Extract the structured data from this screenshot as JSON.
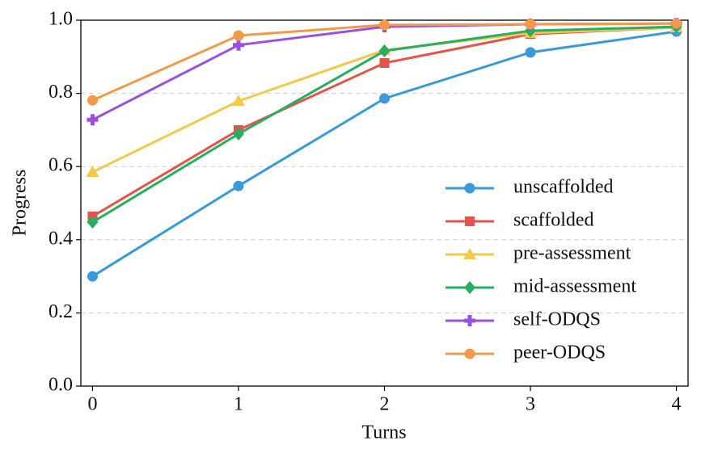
{
  "chart_data": {
    "type": "line",
    "xlabel": "Turns",
    "ylabel": "Progress",
    "x": [
      0,
      1,
      2,
      3,
      4
    ],
    "xlim": [
      -0.08,
      4.08
    ],
    "xticks": [
      0,
      1,
      2,
      3,
      4
    ],
    "ylim": [
      0,
      1
    ],
    "yticks": [
      {
        "value": 0,
        "label": "0.0"
      },
      0.2,
      0.4,
      0.6,
      0.8,
      {
        "value": 1,
        "label": "1.0"
      }
    ],
    "grid": true,
    "legend": "lower right",
    "series": [
      {
        "name": "unscaffolded",
        "color": "#3a9ad9",
        "marker": "circle",
        "values": [
          0.3,
          0.547,
          0.786,
          0.912,
          0.969
        ]
      },
      {
        "name": "scaffolded",
        "color": "#e5534b",
        "marker": "square",
        "values": [
          0.464,
          0.7,
          0.883,
          0.962,
          0.98
        ]
      },
      {
        "name": "pre-assessment",
        "color": "#f2c94c",
        "marker": "triangle",
        "values": [
          0.585,
          0.779,
          0.918,
          0.965,
          0.98
        ]
      },
      {
        "name": "mid-assessment",
        "color": "#27ae60",
        "marker": "diamond",
        "values": [
          0.448,
          0.689,
          0.916,
          0.971,
          0.982
        ]
      },
      {
        "name": "self-ODQS",
        "color": "#9b51e0",
        "marker": "plus",
        "values": [
          0.728,
          0.932,
          0.982,
          0.989,
          0.991
        ]
      },
      {
        "name": "peer-ODQS",
        "color": "#f2994a",
        "marker": "circle",
        "values": [
          0.781,
          0.958,
          0.987,
          0.989,
          0.991
        ]
      }
    ]
  }
}
